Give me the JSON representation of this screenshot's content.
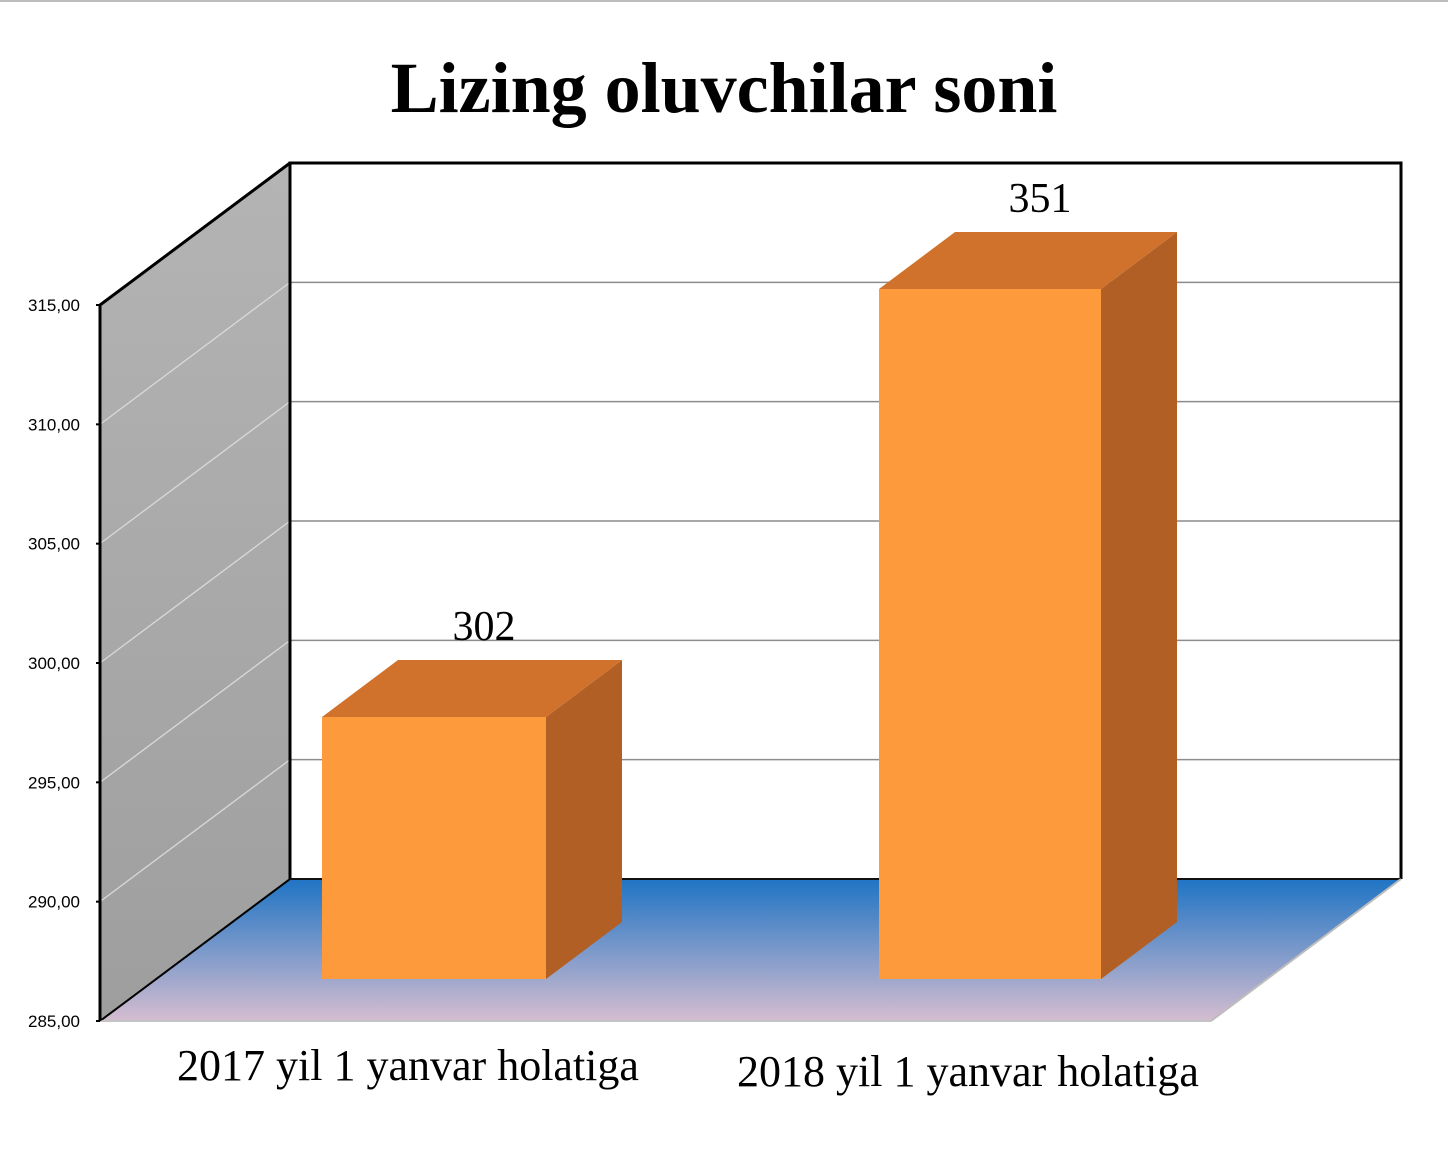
{
  "chart_data": {
    "type": "bar",
    "title": "Lizing oluvchilar soni",
    "categories": [
      "2017 yil 1 yanvar holatiga",
      "2018 yil 1 yanvar holatiga"
    ],
    "values": [
      302,
      351
    ],
    "data_labels": [
      "302",
      "351"
    ],
    "ylim": [
      285,
      315
    ],
    "yticks": [
      "285,00",
      "290,00",
      "295,00",
      "300,00",
      "305,00",
      "310,00",
      "315,00"
    ],
    "grid": true,
    "legend": "none",
    "style": "3d-column",
    "colors": {
      "bar_front": "#fd9a3c",
      "bar_top": "#d0722c",
      "bar_side": "#b15f24",
      "floor_top": "#1f74c4",
      "floor_bottom": "#d5bdd0",
      "side_wall": "#a6a6a6"
    }
  }
}
